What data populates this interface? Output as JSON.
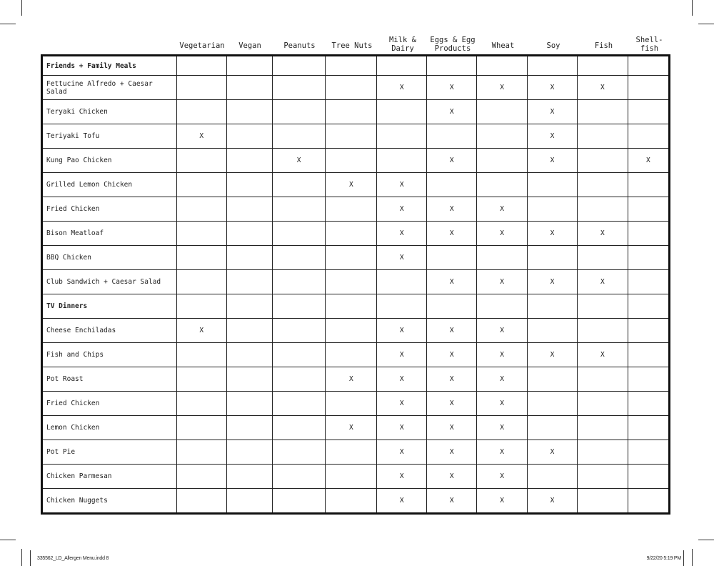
{
  "columns": [
    "Vegetarian",
    "Vegan",
    "Peanuts",
    "Tree Nuts",
    "Milk &\nDairy",
    "Eggs & Egg\nProducts",
    "Wheat",
    "Soy",
    "Fish",
    "Shell-\nfish"
  ],
  "rows": [
    {
      "name": "Friends + Family Meals",
      "section": true,
      "marks": [
        "",
        "",
        "",
        "",
        "",
        "",
        "",
        "",
        "",
        ""
      ]
    },
    {
      "name": "Fettucine Alfredo + Caesar Salad",
      "marks": [
        "",
        "",
        "",
        "",
        "X",
        "X",
        "X",
        "X",
        "X",
        ""
      ]
    },
    {
      "name": "Teryaki Chicken",
      "marks": [
        "",
        "",
        "",
        "",
        "",
        "X",
        "",
        "X",
        "",
        ""
      ]
    },
    {
      "name": "Teriyaki Tofu",
      "marks": [
        "X",
        "",
        "",
        "",
        "",
        "",
        "",
        "X",
        "",
        ""
      ]
    },
    {
      "name": "Kung Pao Chicken",
      "marks": [
        "",
        "",
        "X",
        "",
        "",
        "X",
        "",
        "X",
        "",
        "X"
      ]
    },
    {
      "name": "Grilled Lemon Chicken",
      "marks": [
        "",
        "",
        "",
        "X",
        "X",
        "",
        "",
        "",
        "",
        ""
      ]
    },
    {
      "name": "Fried Chicken",
      "marks": [
        "",
        "",
        "",
        "",
        "X",
        "X",
        "X",
        "",
        "",
        ""
      ]
    },
    {
      "name": "Bison Meatloaf",
      "marks": [
        "",
        "",
        "",
        "",
        "X",
        "X",
        "X",
        "X",
        "X",
        ""
      ]
    },
    {
      "name": "BBQ Chicken",
      "marks": [
        "",
        "",
        "",
        "",
        "X",
        "",
        "",
        "",
        "",
        ""
      ]
    },
    {
      "name": "Club Sandwich + Caesar Salad",
      "marks": [
        "",
        "",
        "",
        "",
        "",
        "X",
        "X",
        "X",
        "X",
        ""
      ]
    },
    {
      "name": "TV Dinners",
      "section": true,
      "marks": [
        "",
        "",
        "",
        "",
        "",
        "",
        "",
        "",
        "",
        ""
      ]
    },
    {
      "name": "Cheese Enchiladas",
      "marks": [
        "X",
        "",
        "",
        "",
        "X",
        "X",
        "X",
        "",
        "",
        ""
      ]
    },
    {
      "name": "Fish and Chips",
      "marks": [
        "",
        "",
        "",
        "",
        "X",
        "X",
        "X",
        "X",
        "X",
        ""
      ]
    },
    {
      "name": "Pot Roast",
      "marks": [
        "",
        "",
        "",
        "X",
        "X",
        "X",
        "X",
        "",
        "",
        ""
      ]
    },
    {
      "name": "Fried Chicken",
      "marks": [
        "",
        "",
        "",
        "",
        "X",
        "X",
        "X",
        "",
        "",
        ""
      ]
    },
    {
      "name": "Lemon Chicken",
      "marks": [
        "",
        "",
        "",
        "X",
        "X",
        "X",
        "X",
        "",
        "",
        ""
      ]
    },
    {
      "name": "Pot Pie",
      "marks": [
        "",
        "",
        "",
        "",
        "X",
        "X",
        "X",
        "X",
        "",
        ""
      ]
    },
    {
      "name": "Chicken Parmesan",
      "marks": [
        "",
        "",
        "",
        "",
        "X",
        "X",
        "X",
        "",
        "",
        ""
      ]
    },
    {
      "name": "Chicken Nuggets",
      "marks": [
        "",
        "",
        "",
        "",
        "X",
        "X",
        "X",
        "X",
        "",
        ""
      ]
    }
  ],
  "footer": {
    "file": "335562_LD_Allergen Menu.indd   8",
    "timestamp": "9/22/20   5:19 PM"
  }
}
